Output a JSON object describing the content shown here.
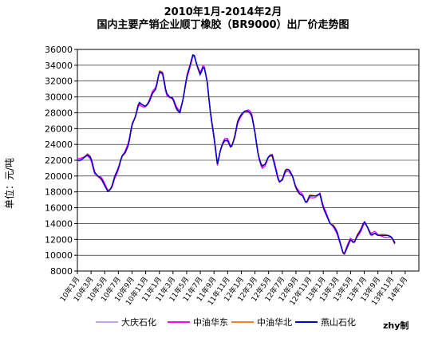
{
  "chart_data": {
    "type": "line",
    "title": "2010年1月-2014年2月",
    "subtitle": "国内主要产销企业顺丁橡胶（BR9000）出厂价走势图",
    "ylabel": "单位：元/吨",
    "xlabel": "",
    "ylim": [
      8000,
      36000
    ],
    "yticks": [
      8000,
      10000,
      12000,
      14000,
      16000,
      18000,
      20000,
      22000,
      24000,
      26000,
      28000,
      30000,
      32000,
      34000,
      36000
    ],
    "x_tick_labels": [
      "10年1月",
      "10年3月",
      "10年5月",
      "10年7月",
      "10年9月",
      "10年11月",
      "11年1月",
      "11年3月",
      "11年5月",
      "11年7月",
      "11年9月",
      "11年11月",
      "12年1月",
      "12年3月",
      "12年5月",
      "12年7月",
      "12年9月",
      "12年11月",
      "13年1月",
      "13年3月",
      "13年5月",
      "13年7月",
      "13年9月",
      "13年11月",
      "14年1月"
    ],
    "grid": "horizontal",
    "legend_position": "bottom",
    "series_keypoints": [
      [
        0,
        22000
      ],
      [
        0.5,
        22000
      ],
      [
        1.5,
        22700
      ],
      [
        2,
        22300
      ],
      [
        2.5,
        20500
      ],
      [
        3,
        20000
      ],
      [
        3.5,
        19700
      ],
      [
        4,
        18800
      ],
      [
        4.5,
        18000
      ],
      [
        5,
        18500
      ],
      [
        5.5,
        20000
      ],
      [
        6,
        21000
      ],
      [
        6.5,
        22500
      ],
      [
        7,
        23000
      ],
      [
        7.5,
        24000
      ],
      [
        8,
        26500
      ],
      [
        8.5,
        27500
      ],
      [
        9,
        29300
      ],
      [
        9.5,
        29000
      ],
      [
        10,
        28800
      ],
      [
        10.5,
        29400
      ],
      [
        11,
        30500
      ],
      [
        11.5,
        31000
      ],
      [
        12,
        33200
      ],
      [
        12.5,
        33000
      ],
      [
        13,
        30500
      ],
      [
        13.5,
        30000
      ],
      [
        14,
        29800
      ],
      [
        14.5,
        28500
      ],
      [
        15,
        28000
      ],
      [
        15.5,
        29800
      ],
      [
        16,
        32500
      ],
      [
        16.5,
        34000
      ],
      [
        17,
        35600
      ],
      [
        17.5,
        34000
      ],
      [
        18,
        32800
      ],
      [
        18.5,
        34000
      ],
      [
        19,
        32000
      ],
      [
        19.5,
        27800
      ],
      [
        20,
        25000
      ],
      [
        20.5,
        21500
      ],
      [
        21,
        23500
      ],
      [
        21.5,
        24500
      ],
      [
        22,
        24500
      ],
      [
        22.5,
        23500
      ],
      [
        23,
        24800
      ],
      [
        23.5,
        27000
      ],
      [
        24,
        27800
      ],
      [
        24.5,
        28200
      ],
      [
        25,
        28200
      ],
      [
        25.5,
        27800
      ],
      [
        26,
        25500
      ],
      [
        26.5,
        22500
      ],
      [
        27,
        21200
      ],
      [
        27.5,
        21500
      ],
      [
        28,
        22500
      ],
      [
        28.5,
        22700
      ],
      [
        29,
        21000
      ],
      [
        29.5,
        19200
      ],
      [
        30,
        19500
      ],
      [
        30.5,
        20800
      ],
      [
        31,
        20800
      ],
      [
        31.5,
        20000
      ],
      [
        32,
        18500
      ],
      [
        32.5,
        17800
      ],
      [
        33,
        17500
      ],
      [
        33.5,
        16500
      ],
      [
        34,
        17500
      ],
      [
        34.5,
        17500
      ],
      [
        35,
        17500
      ],
      [
        35.5,
        17800
      ],
      [
        36,
        16000
      ],
      [
        36.5,
        15000
      ],
      [
        37,
        14000
      ],
      [
        37.5,
        13700
      ],
      [
        38,
        13000
      ],
      [
        38.5,
        11500
      ],
      [
        39,
        10000
      ],
      [
        39.5,
        11000
      ],
      [
        40,
        12000
      ],
      [
        40.5,
        11500
      ],
      [
        41,
        12500
      ],
      [
        41.5,
        13200
      ],
      [
        42,
        14300
      ],
      [
        42.5,
        13500
      ],
      [
        43,
        12500
      ],
      [
        43.5,
        12800
      ],
      [
        44,
        12500
      ],
      [
        44.5,
        12500
      ],
      [
        45,
        12500
      ],
      [
        45.5,
        12500
      ],
      [
        46,
        12300
      ],
      [
        46.5,
        11500
      ]
    ],
    "series": [
      {
        "name": "大庆石化",
        "color": "#c8a0f0",
        "offset": 0
      },
      {
        "name": "中油华东",
        "color": "#ff00ff",
        "offset": 250
      },
      {
        "name": "中油华北",
        "color": "#ff7f27",
        "offset": -150
      },
      {
        "name": "燕山石化",
        "color": "#0000cc",
        "offset": 0
      }
    ]
  },
  "credit": "zhy制"
}
